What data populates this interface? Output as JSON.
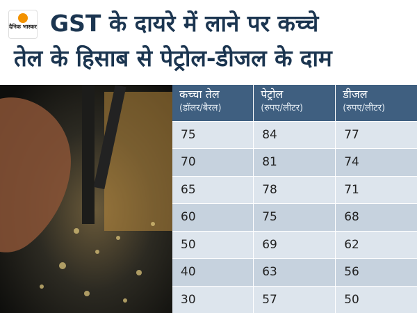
{
  "header": {
    "logo": "दैनिक भास्कर",
    "title_lines": [
      "GST के दायरे में लाने पर कच्चे",
      "तेल के हिसाब से पेट्रोल-डीजल के दाम"
    ]
  },
  "table": {
    "columns": [
      {
        "name": "कच्चा तेल",
        "unit": "(डॉलर/बैरल)"
      },
      {
        "name": "पेट्रोल",
        "unit": "(रुपए/लीटर)"
      },
      {
        "name": "डीजल",
        "unit": "(रुपए/लीटर)"
      }
    ],
    "rows": [
      [
        75,
        84,
        77
      ],
      [
        70,
        81,
        74
      ],
      [
        65,
        78,
        71
      ],
      [
        60,
        75,
        68
      ],
      [
        50,
        69,
        62
      ],
      [
        40,
        63,
        56
      ],
      [
        30,
        57,
        50
      ]
    ]
  }
}
